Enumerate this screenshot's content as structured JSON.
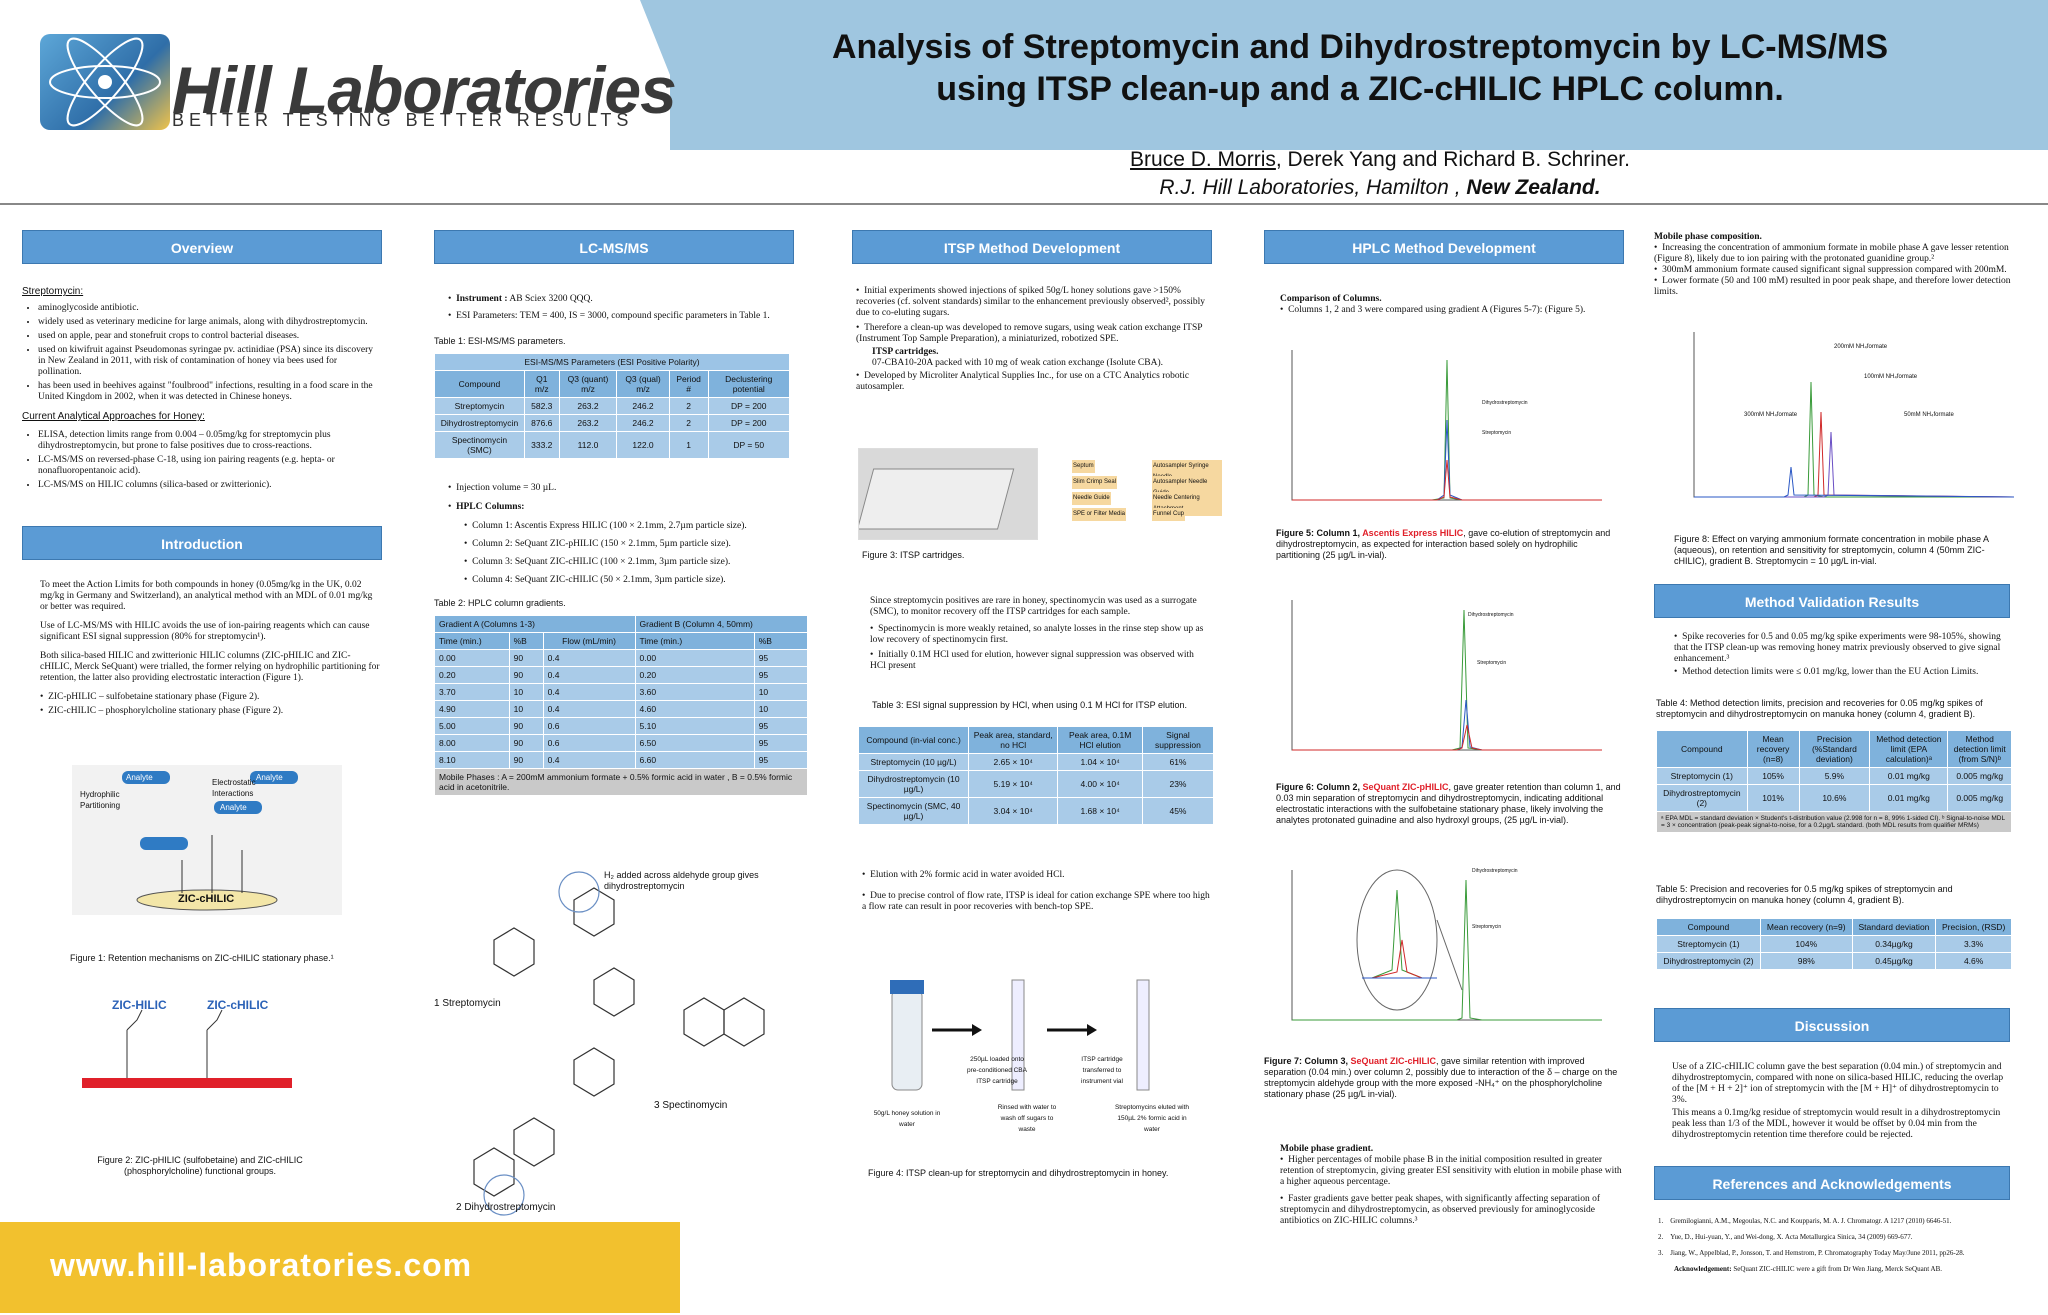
{
  "header": {
    "logo_title": "Hill Laboratories",
    "logo_sub": "BETTER TESTING BETTER RESULTS",
    "title_line1": "Analysis of Streptomycin and Dihydrostreptomycin by LC-MS/MS",
    "title_line2": "using ITSP clean-up and a ZIC-cHILIC HPLC column.",
    "author_main": "Bruce D. Morris",
    "authors_rest": ", Derek Yang and Richard B. Schriner.",
    "affil_main": "R.J. Hill Laboratories, Hamilton , ",
    "affil_country": "New Zealand."
  },
  "overview": {
    "heading": "Overview",
    "sub1": "Streptomycin:",
    "items1": [
      "aminoglycoside antibiotic.",
      "widely used as veterinary medicine for large animals, along with dihydrostreptomycin.",
      "used on apple, pear and stonefruit crops to control bacterial diseases.",
      "used on kiwifruit against Pseudomonas syringae pv. actinidiae (PSA) since its discovery in New Zealand in 2011, with risk of contamination of honey via bees used for pollination.",
      "has been used in beehives against \"foulbrood\" infections, resulting in a food scare in the United Kingdom in 2002, when it was detected in Chinese honeys."
    ],
    "sub2": "Current Analytical Approaches for Honey:",
    "items2": [
      "ELISA, detection limits range from 0.004 – 0.05mg/kg for streptomycin plus dihydrostreptomycin, but prone to false positives due to cross-reactions.",
      "LC-MS/MS on reversed-phase C-18, using ion pairing reagents (e.g. hepta- or nonafluoropentanoic acid).",
      "LC-MS/MS on HILIC columns (silica-based or zwitterionic)."
    ]
  },
  "intro": {
    "heading": "Introduction",
    "p1": "To meet the Action Limits for both compounds in honey (0.05mg/kg in the UK, 0.02 mg/kg in Germany and Switzerland), an analytical method with an MDL of 0.01 mg/kg or better was required.",
    "p2": "Use of LC-MS/MS with HILIC avoids the use of ion-pairing reagents which can cause significant ESI signal suppression (80% for streptomycin¹).",
    "p3": "Both silica-based HILIC and zwitterionic HILIC columns (ZIC-pHILIC and ZIC-cHILIC, Merck SeQuant) were trialled, the former relying on hydrophilic partitioning for retention, the latter also providing electrostatic interaction (Figure 1).",
    "items": [
      "ZIC-pHILIC – sulfobetaine stationary phase (Figure 2).",
      "ZIC-cHILIC – phosphorylcholine stationary phase (Figure 2)."
    ],
    "fig1_labels": [
      "Analyte",
      "Hydrophilic Partitioning",
      "Electrostatic Interactions",
      "Analyte",
      "Analyte",
      "ZIC-cHILIC"
    ],
    "fig1_cap": "Figure 1: Retention mechanisms on ZIC-cHILIC stationary phase.¹",
    "fig2_labels": [
      "ZIC-HILIC",
      "ZIC-cHILIC"
    ],
    "fig2_cap": "Figure 2: ZIC-pHILIC (sulfobetaine) and ZIC-cHILIC (phosphorylcholine) functional groups."
  },
  "lcms": {
    "heading": "LC-MS/MS",
    "instrument_label": "Instrument :",
    "instrument": " AB Sciex 3200 QQQ.",
    "esi": "ESI Parameters: TEM = 400, IS = 3000, compound specific parameters in Table 1.",
    "t1_cap": "Table 1: ESI-MS/MS parameters.",
    "t1_title": "ESI-MS/MS Parameters (ESI Positive Polarity)",
    "t1_cols": [
      "Compound",
      "Q1 m/z",
      "Q3 (quant) m/z",
      "Q3 (qual) m/z",
      "Period #",
      "Declustering potential"
    ],
    "t1_rows": [
      [
        "Streptomycin",
        "582.3",
        "263.2",
        "246.2",
        "2",
        "DP = 200"
      ],
      [
        "Dihydrostreptomycin",
        "876.6",
        "263.2",
        "246.2",
        "2",
        "DP = 200"
      ],
      [
        "Spectinomycin (SMC)",
        "333.2",
        "112.0",
        "122.0",
        "1",
        "DP = 50"
      ]
    ],
    "inj": "Injection volume = 30 µL.",
    "hplc_label": "HPLC Columns:",
    "columns": [
      "Column 1: Ascentis Express HILIC (100 × 2.1mm, 2.7µm particle size).",
      "Column 2: SeQuant ZIC-pHILIC (150 × 2.1mm, 5µm particle size).",
      "Column 3: SeQuant ZIC-cHILIC (100 × 2.1mm, 3µm particle size).",
      "Column 4: SeQuant ZIC-cHILIC (50 × 2.1mm, 3µm particle size)."
    ],
    "t2_cap": "Table 2: HPLC column gradients.",
    "t2_ga": "Gradient A (Columns 1-3)",
    "t2_gb": "Gradient B (Column 4, 50mm)",
    "t2_cols": [
      "Time (min.)",
      "%B",
      "Flow (mL/min)",
      "Time (min.)",
      "%B"
    ],
    "t2_rows": [
      [
        "0.00",
        "90",
        "0.4",
        "0.00",
        "95"
      ],
      [
        "0.20",
        "90",
        "0.4",
        "0.20",
        "95"
      ],
      [
        "3.70",
        "10",
        "0.4",
        "3.60",
        "10"
      ],
      [
        "4.90",
        "10",
        "0.4",
        "4.60",
        "10"
      ],
      [
        "5.00",
        "90",
        "0.6",
        "5.10",
        "95"
      ],
      [
        "8.00",
        "90",
        "0.6",
        "6.50",
        "95"
      ],
      [
        "8.10",
        "90",
        "0.4",
        "6.60",
        "95"
      ]
    ],
    "t2_note": "Mobile Phases : A = 200mM  ammonium formate + 0.5% formic acid in water , B = 0.5% formic acid in acetonitrile.",
    "s1": "1  Streptomycin",
    "s2": "2  Dihydrostreptomycin",
    "s3": "3  Spectinomycin",
    "h2note": "H₂ added across aldehyde group gives dihydrostreptomycin"
  },
  "itsp": {
    "heading": "ITSP Method Development",
    "items": [
      "Initial experiments showed injections of spiked 50g/L honey solutions gave >150% recoveries (cf. solvent standards) similar to the enhancement previously observed², possibly due to co-eluting sugars.",
      "Therefore a clean-up was developed to remove sugars, using weak cation exchange ITSP (Instrument Top Sample Preparation), a miniaturized, robotized SPE."
    ],
    "cart_label": "ITSP cartridges.",
    "cart_text": "07-CBA10-20A packed with 10 mg of weak cation exchange (Isolute CBA).",
    "items_b": [
      "Developed by Microliter Analytical Supplies Inc., for use on a CTC Analytics robotic autosampler."
    ],
    "fig3_cap": "Figure 3: ITSP cartridges.",
    "fig3_labels": [
      "Septum",
      "Slim Crimp Seal",
      "Needle Guide",
      "SPE or Filter Media",
      "Autosampler Syringe Needle",
      "Autosampler Needle Guide",
      "Needle Centering Attachment",
      "Funnel Cup"
    ],
    "p_smc": "Since streptomycin positives are rare in honey, spectinomycin was used as a surrogate (SMC), to monitor recovery off the ITSP cartridges for each sample.",
    "items2": [
      "Spectinomycin is more weakly retained, so analyte losses in the rinse step show up as low recovery of spectinomycin first.",
      "Initially 0.1M HCl used for elution, however signal suppression was observed with HCl present"
    ],
    "t3_cap": "Table 3: ESI signal suppression by HCl, when using 0.1 M HCl for ITSP elution.",
    "t3_cols": [
      "Compound (in-vial conc.)",
      "Peak area, standard, no HCl",
      "Peak area, 0.1M HCl elution",
      "Signal suppression"
    ],
    "t3_rows": [
      [
        "Streptomycin (10 µg/L)",
        "2.65 × 10⁴",
        "1.04 × 10⁴",
        "61%"
      ],
      [
        "Dihydrostreptomycin (10 µg/L)",
        "5.19 × 10⁴",
        "4.00 × 10⁴",
        "23%"
      ],
      [
        "Spectinomycin (SMC, 40 µg/L)",
        "3.04 × 10⁴",
        "1.68 × 10⁴",
        "45%"
      ]
    ],
    "items3": [
      "Elution with 2% formic acid in water avoided HCl.",
      "Due to precise control of flow rate, ITSP is ideal for cation exchange SPE where too high a flow rate can result in poor recoveries with bench-top SPE."
    ],
    "fig4_labels": [
      "250µL loaded onto pre-conditioned CBA ITSP cartridge",
      "ITSP cartridge transferred to instrument vial",
      "50g/L honey solution in water",
      "Rinsed with water to wash off sugars to waste",
      "Streptomycins eluted with 150µL 2% formic acid in water"
    ],
    "fig4_cap": "Figure 4: ITSP clean-up for streptomycin and dihydrostreptomycin in honey."
  },
  "hplc": {
    "heading": "HPLC Method Development",
    "comp_label": "Comparison of Columns.",
    "comp_item": "Columns 1, 2 and 3 were compared using gradient A (Figures 5-7): (Figure 5).",
    "fig5_pre": "Figure 5: Column 1, ",
    "fig5_col": "Ascentis Express HILIC",
    "fig5_post": ", gave co-elution of streptomycin and dihydrostreptomycin, as expected for interaction based solely on hydrophilic partitioning (25 µg/L in-vial).",
    "fig6_pre": "Figure 6: Column 2, ",
    "fig6_col": "SeQuant ZIC-pHILIC",
    "fig6_post": ", gave greater retention than column 1, and 0.03 min separation of streptomycin and dihydrostreptomycin, indicating additional electrostatic interactions  with the sulfobetaine stationary phase, likely involving the analytes protonated guinadine and also hydroxyl groups, (25 µg/L in-vial).",
    "fig7_pre": "Figure 7: Column 3, ",
    "fig7_col": "SeQuant ZIC-cHILIC",
    "fig7_post": ", gave similar retention with improved separation (0.04 min.) over column 2, possibly due to interaction of the δ – charge on the streptomycin aldehyde group with the more exposed -NH₄⁺ on the phosphorylcholine stationary phase (25 µg/L in-vial).",
    "lab_dhs": "Dihydrostreptomycin",
    "lab_str": "Streptomycin",
    "mp_grad_label": "Mobile phase gradient.",
    "mp_grad_items": [
      "Higher percentages of mobile phase B in the initial composition resulted in greater retention of streptomycin, giving greater ESI sensitivity with elution in mobile phase with a higher aqueous percentage.",
      "Faster gradients gave better peak shapes, with significantly affecting separation of streptomycin and dihydrostreptomycin, as observed previously for aminoglycoside antibiotics on ZIC-HILIC columns.³"
    ]
  },
  "col5": {
    "mp_comp_label": "Mobile phase composition.",
    "mp_comp_items": [
      "Increasing the concentration of ammonium formate in mobile phase A gave lesser retention (Figure 8), likely due to ion pairing with the protonated guanidine group.²",
      "300mM ammonium formate caused significant signal suppression compared with 200mM.",
      "Lower formate (50 and 100 mM) resulted in poor peak shape, and therefore lower detection limits."
    ],
    "fig8_labels": [
      "200mM NH₄formate",
      "100mM NH₄formate",
      "300mM NH₄formate",
      "50mM NH₄formate"
    ],
    "fig8_cap": "Figure 8:  Effect on varying ammonium formate concentration in mobile phase A (aqueous), on retention and sensitivity for streptomycin, column 4 (50mm ZIC-cHILIC), gradient B. Streptomycin = 10 µg/L in-vial.",
    "val_heading": "Method Validation Results",
    "val_items": [
      "Spike recoveries for 0.5 and 0.05 mg/kg spike experiments were 98-105%, showing that the ITSP clean-up was removing honey matrix previously observed to give signal enhancement.³",
      "Method detection limits were ≤ 0.01 mg/kg, lower than the EU Action Limits."
    ],
    "t4_cap": "Table 4: Method detection limits, precision and recoveries for 0.05 mg/kg spikes of streptomycin and dihydrostreptomycin on manuka honey (column 4, gradient B).",
    "t4_cols": [
      "Compound",
      "Mean recovery (n=8)",
      "Precision (%Standard deviation)",
      "Method detection limit (EPA calculation)ᵃ",
      "Method detection limit (from S/N)ᵇ"
    ],
    "t4_rows": [
      [
        "Streptomycin (1)",
        "105%",
        "5.9%",
        "0.01 mg/kg",
        "0.005 mg/kg"
      ],
      [
        "Dihydrostreptomycin (2)",
        "101%",
        "10.6%",
        "0.01 mg/kg",
        "0.005 mg/kg"
      ]
    ],
    "t4_note": "ᵃ EPA MDL = standard deviation × Student's t-distribution value (2.998 for n = 8, 99% 1-sided CI). ᵇ Signal-to-noise MDL = 3 × concentration (peak-peak signal-to-noise, for a 0.2µg/L standard. (both MDL results from qualifier MRMs)",
    "t5_cap": "Table 5: Precision and recoveries for 0.5 mg/kg spikes of streptomycin and dihydrostreptomycin on manuka honey (column 4, gradient B).",
    "t5_cols": [
      "Compound",
      "Mean recovery (n=9)",
      "Standard deviation",
      "Precision, (RSD)"
    ],
    "t5_rows": [
      [
        "Streptomycin (1)",
        "104%",
        "0.34µg/kg",
        "3.3%"
      ],
      [
        "Dihydrostreptomycin (2)",
        "98%",
        "0.45µg/kg",
        "4.6%"
      ]
    ],
    "disc_heading": "Discussion",
    "disc_p1": "Use of a ZIC-cHILIC column gave the best separation (0.04 min.) of streptomycin and dihydrostreptomycin, compared with none on silica-based HILIC, reducing the overlap of the [M + H + 2]⁺ ion of streptomycin with the [M + H]⁺ of dihydrostreptomycin to 3%.",
    "disc_p2": "This means a 0.1mg/kg residue of streptomycin would result in a dihydrostreptomycin peak less than 1/3 of the MDL, however it would be offset by 0.04 min from the dihydrostreptomycin retention time therefore could be rejected.",
    "ref_heading": "References and Acknowledgements",
    "refs": [
      "Gremilogianni, A.M., Megoulas, N.C. and Koupparis, M. A. J. Chromatogr. A 1217 (2010) 6646-51.",
      "Yue, D., Hui-yuan, Y., and Wei-dong, X. Acta Metallurgica Sinica, 34 (2009) 669-677.",
      "Jiang, W., Appelblad, P., Jonsson, T. and Hemstrom, P. Chromatography Today May/June 2011, pp26-28."
    ],
    "ack_label": "Acknowledgement:",
    "ack": " SeQuant ZIC-cHILIC were a gift from Dr Wen  Jiang, Merck SeQuant AB."
  },
  "footer": {
    "url": "www.hill-laboratories.com"
  },
  "colors": {
    "header_blue": "#9fc6e0",
    "section_blue": "#5b9bd5",
    "table_blue": "#a9cbe8",
    "footer_yellow": "#f2c12e",
    "accent_red": "#e0202a"
  }
}
